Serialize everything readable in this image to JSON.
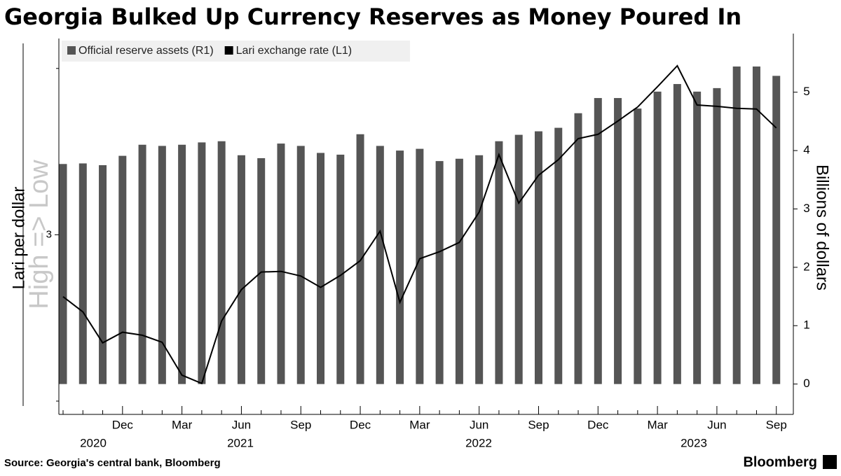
{
  "chart_data": {
    "type": "bar_line",
    "title": "Georgia Bulked Up Currency Reserves as Money Poured In",
    "source": "Source: Georgia's central bank, Bloomberg",
    "brand": "Bloomberg",
    "ylabel": "Lari per dollar",
    "ylabel_note": "High => Low",
    "y2label": "Billions of dollars",
    "categories": [
      null,
      null,
      null,
      "Dec",
      null,
      null,
      "Mar",
      null,
      null,
      "Jun",
      null,
      null,
      "Sep",
      null,
      null,
      "Dec",
      null,
      null,
      "Mar",
      null,
      null,
      "Jun",
      null,
      null,
      "Sep",
      null,
      null,
      "Dec",
      null,
      null,
      "Mar",
      null,
      null,
      "Jun",
      null,
      null,
      "Sep"
    ],
    "years": [
      "2020",
      "2021",
      "2022",
      "2023"
    ],
    "series": [
      {
        "name": "Official reserve assets (R1)",
        "color": "#555555",
        "axis": "y2",
        "kind": "bar",
        "values": [
          3.77,
          3.78,
          3.75,
          3.91,
          4.1,
          4.08,
          4.1,
          4.14,
          4.16,
          3.92,
          3.87,
          4.12,
          4.08,
          3.96,
          3.93,
          4.28,
          4.08,
          4.0,
          4.03,
          3.82,
          3.86,
          3.92,
          4.16,
          4.27,
          4.33,
          4.39,
          4.64,
          4.9,
          4.9,
          4.72,
          5.01,
          5.14,
          5.01,
          5.07,
          5.44,
          5.44,
          5.28
        ]
      },
      {
        "name": "Lari exchange rate (L1)",
        "color": "#000000",
        "axis": "y",
        "kind": "line",
        "values": [
          3.186,
          3.232,
          3.325,
          3.293,
          3.302,
          3.323,
          3.422,
          3.447,
          3.259,
          3.165,
          3.112,
          3.11,
          3.124,
          3.158,
          3.122,
          3.078,
          2.989,
          3.203,
          3.072,
          3.051,
          3.023,
          2.932,
          2.759,
          2.905,
          2.821,
          2.774,
          2.711,
          2.698,
          2.658,
          2.616,
          2.555,
          2.492,
          2.61,
          2.614,
          2.62,
          2.622,
          2.679
        ]
      }
    ],
    "ylim": [
      2.41,
      3.54
    ],
    "y_inverted": true,
    "yticks": [
      3
    ],
    "yminorticks": [
      2.5,
      3.5
    ],
    "y2lim": [
      -0.52,
      5.92
    ],
    "y2ticks": [
      0,
      1,
      2,
      3,
      4,
      5
    ]
  }
}
